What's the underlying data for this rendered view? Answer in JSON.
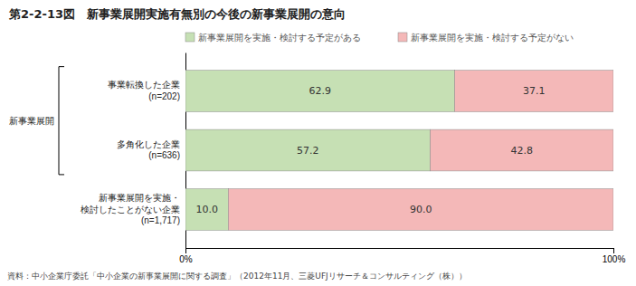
{
  "chart_data": {
    "type": "bar",
    "orientation": "horizontal",
    "stacked": true,
    "title": "第2-2-13図　新事業展開実施有無別の今後の新事業展開の意向",
    "categories": [
      "事業転換した企業\n(n=202)",
      "多角化した企業\n(n=636)",
      "新事業展開を実施・\n検討したことがない企業\n(n=1,717)"
    ],
    "series": [
      {
        "name": "新事業展開を実施・検討する予定がある",
        "color": "#c6e0b4",
        "values": [
          62.9,
          57.2,
          10.0
        ],
        "value_labels": [
          "62.9",
          "57.2",
          "10.0"
        ]
      },
      {
        "name": "新事業展開を実施・検討する予定がない",
        "color": "#f4b8b8",
        "values": [
          37.1,
          42.8,
          90.0
        ],
        "value_labels": [
          "37.1",
          "42.8",
          "90.0"
        ]
      }
    ],
    "xlim": [
      0,
      100
    ],
    "xticks": [
      {
        "value": 0,
        "label": "0%"
      },
      {
        "value": 100,
        "label": "100%"
      }
    ],
    "data_labels": true,
    "grid": false,
    "legend": "top",
    "annotations": [
      "新事業展開",
      "資料：中小企業庁委託「中小企業の新事業展開に関する調査」（2012年11月、三菱UFJリサーチ＆コンサルティング（株））"
    ]
  }
}
